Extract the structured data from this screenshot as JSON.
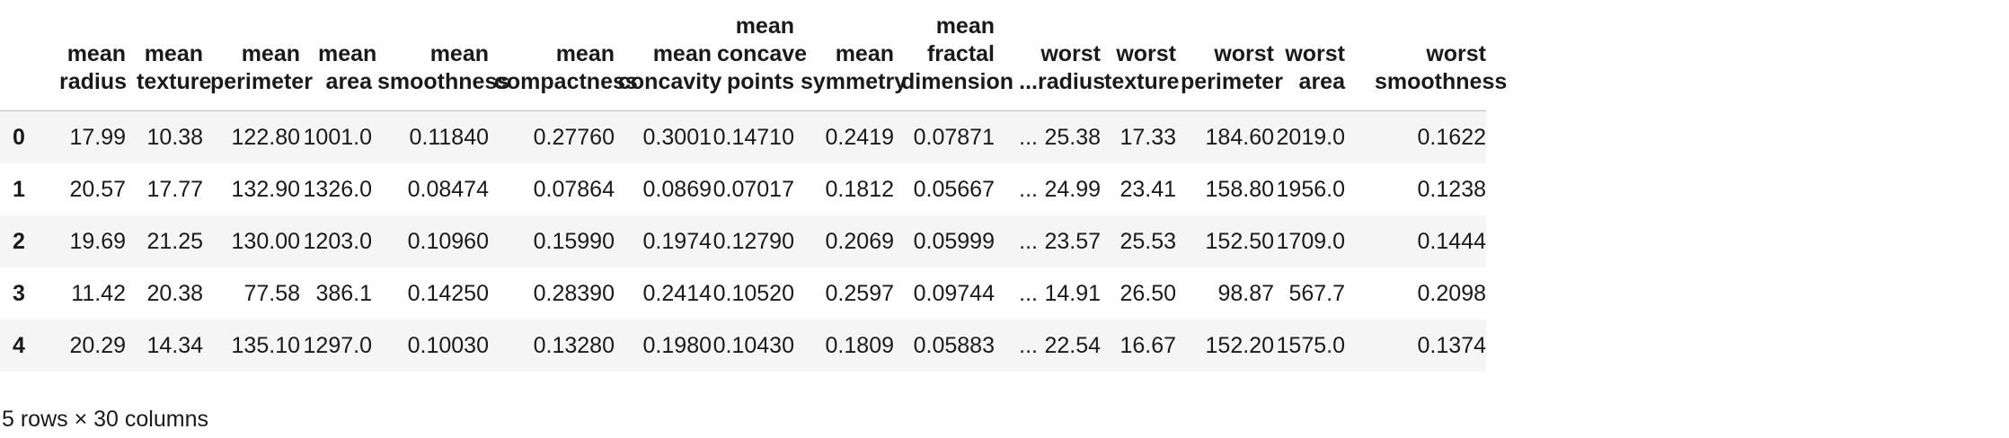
{
  "table": {
    "index_header": "",
    "columns": [
      "mean radius",
      "mean texture",
      "mean perimeter",
      "mean area",
      "mean smoothness",
      "mean compactness",
      "mean concavity",
      "mean concave points",
      "mean symmetry",
      "mean fractal dimension",
      "...",
      "worst radius",
      "worst texture",
      "worst perimeter",
      "worst area",
      "worst smoothness"
    ],
    "rows": [
      {
        "index": "0",
        "cells": [
          "17.99",
          "10.38",
          "122.80",
          "1001.0",
          "0.11840",
          "0.27760",
          "0.3001",
          "0.14710",
          "0.2419",
          "0.07871",
          "...",
          "25.38",
          "17.33",
          "184.60",
          "2019.0",
          "0.1622"
        ]
      },
      {
        "index": "1",
        "cells": [
          "20.57",
          "17.77",
          "132.90",
          "1326.0",
          "0.08474",
          "0.07864",
          "0.0869",
          "0.07017",
          "0.1812",
          "0.05667",
          "...",
          "24.99",
          "23.41",
          "158.80",
          "1956.0",
          "0.1238"
        ]
      },
      {
        "index": "2",
        "cells": [
          "19.69",
          "21.25",
          "130.00",
          "1203.0",
          "0.10960",
          "0.15990",
          "0.1974",
          "0.12790",
          "0.2069",
          "0.05999",
          "...",
          "23.57",
          "25.53",
          "152.50",
          "1709.0",
          "0.1444"
        ]
      },
      {
        "index": "3",
        "cells": [
          "11.42",
          "20.38",
          "77.58",
          "386.1",
          "0.14250",
          "0.28390",
          "0.2414",
          "0.10520",
          "0.2597",
          "0.09744",
          "...",
          "14.91",
          "26.50",
          "98.87",
          "567.7",
          "0.2098"
        ]
      },
      {
        "index": "4",
        "cells": [
          "20.29",
          "14.34",
          "135.10",
          "1297.0",
          "0.10030",
          "0.13280",
          "0.1980",
          "0.10430",
          "0.1809",
          "0.05883",
          "...",
          "22.54",
          "16.67",
          "152.20",
          "1575.0",
          "0.1374"
        ]
      }
    ]
  },
  "footer": {
    "shape_text": "5 rows × 30 columns"
  }
}
